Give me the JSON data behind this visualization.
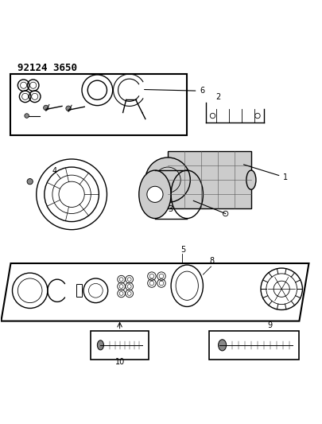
{
  "title": "92124 3650",
  "bg_color": "#ffffff",
  "line_color": "#000000",
  "gray_color": "#888888",
  "light_gray": "#cccccc",
  "dark_gray": "#555555",
  "fig_width": 4.06,
  "fig_height": 5.33,
  "dpi": 100
}
